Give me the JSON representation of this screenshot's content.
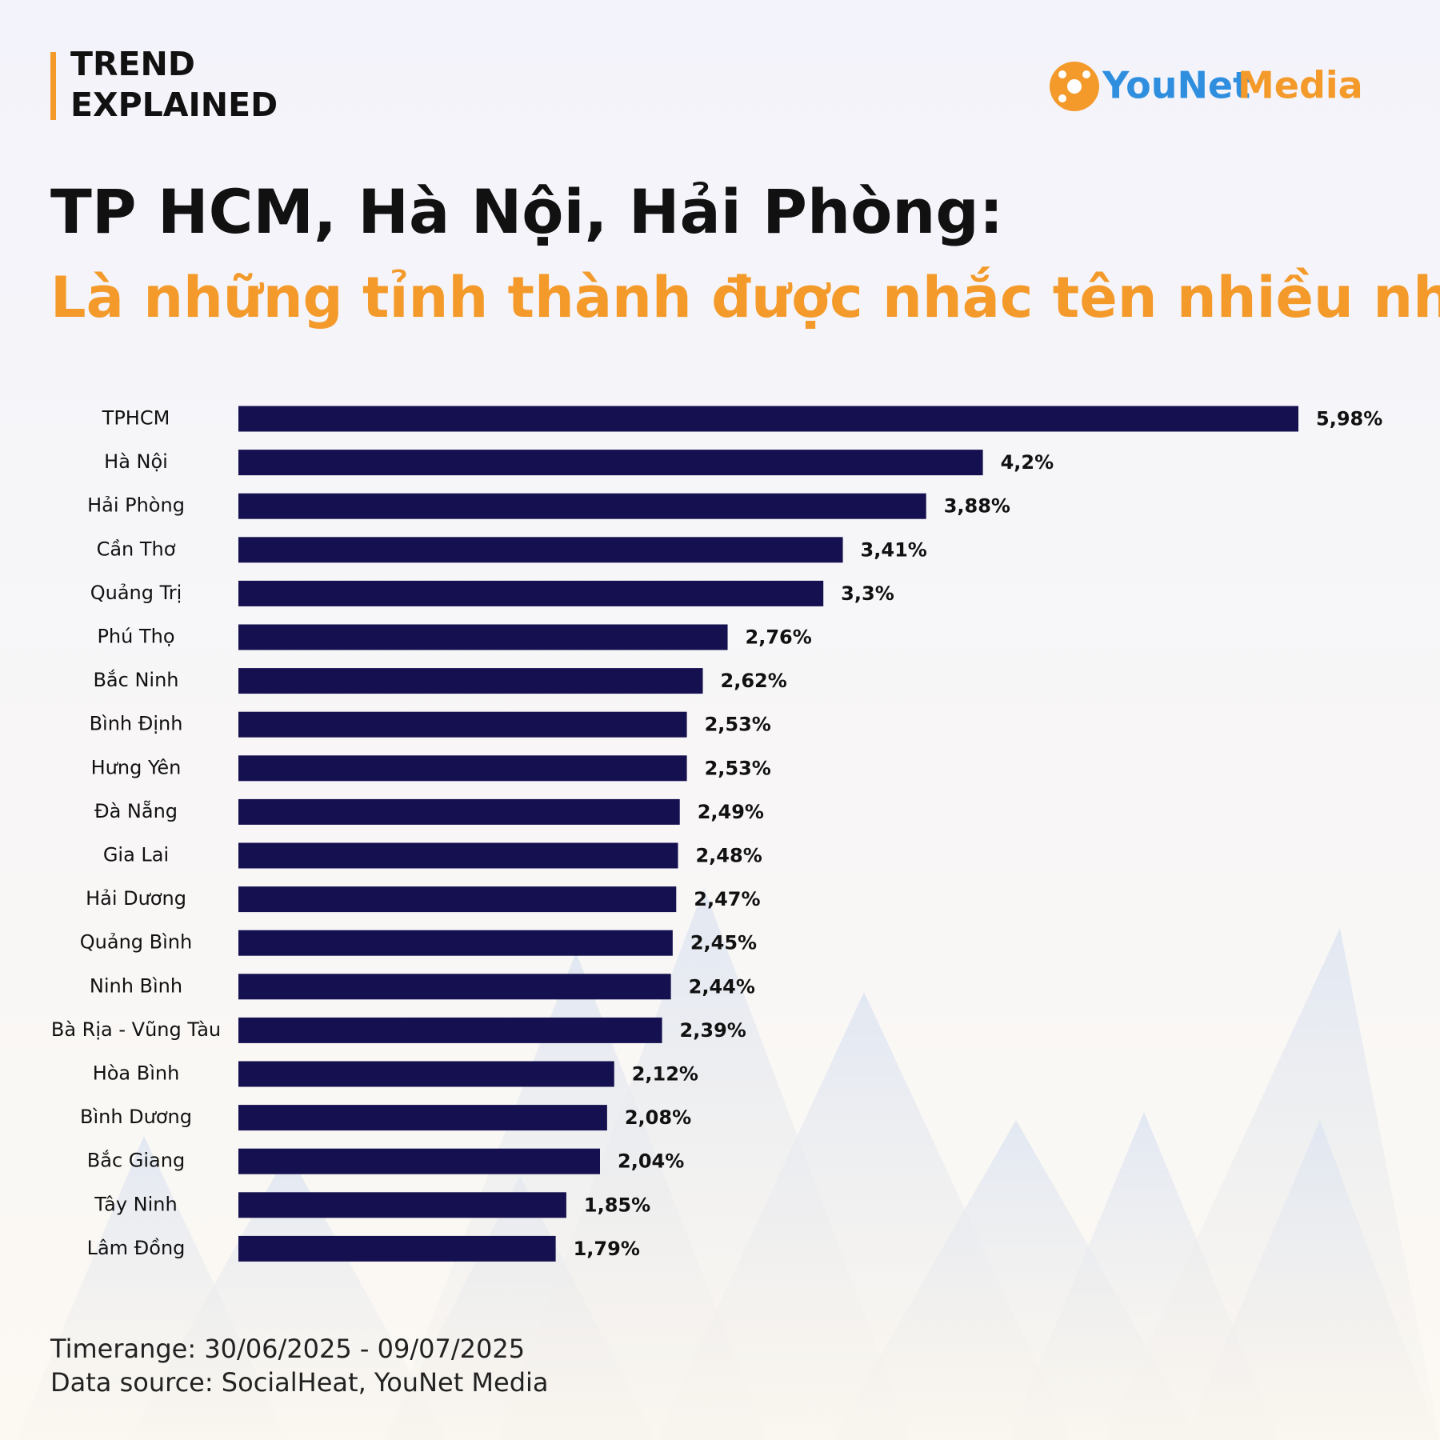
{
  "header": {
    "tag": [
      "TREND",
      "EXPLAINED"
    ],
    "brand": [
      "YouNet",
      "Media"
    ]
  },
  "chart_data": {
    "type": "bar",
    "orientation": "horizontal",
    "title": "TP HCM, Hà Nội, Hải Phòng:",
    "subtitle": "Là những tỉnh thành được nhắc tên nhiều nhất",
    "categories": [
      "TPHCM",
      "Hà Nội",
      "Hải Phòng",
      "Cần Thơ",
      "Quảng Trị",
      "Phú Thọ",
      "Bắc Ninh",
      "Bình Định",
      "Hưng Yên",
      "Đà Nẵng",
      "Gia Lai",
      "Hải Dương",
      "Quảng Bình",
      "Ninh Bình",
      "Bà Rịa - Vũng Tàu",
      "Hòa Bình",
      "Bình Dương",
      "Bắc Giang",
      "Tây Ninh",
      "Lâm Đồng"
    ],
    "values": [
      5.98,
      4.2,
      3.88,
      3.41,
      3.3,
      2.76,
      2.62,
      2.53,
      2.53,
      2.49,
      2.48,
      2.47,
      2.45,
      2.44,
      2.39,
      2.12,
      2.08,
      2.04,
      1.85,
      1.79
    ],
    "value_labels": [
      "5,98%",
      "4,2%",
      "3,88%",
      "3,41%",
      "3,3%",
      "2,76%",
      "2,62%",
      "2,53%",
      "2,53%",
      "2,49%",
      "2,48%",
      "2,47%",
      "2,45%",
      "2,44%",
      "2,39%",
      "2,12%",
      "2,08%",
      "2,04%",
      "1,85%",
      "1,79%"
    ],
    "color": "#15104f"
  },
  "footer": {
    "lines": [
      "Timerange: 30/06/2025 - 09/07/2025",
      "Data source: SocialHeat, YouNet Media"
    ]
  }
}
